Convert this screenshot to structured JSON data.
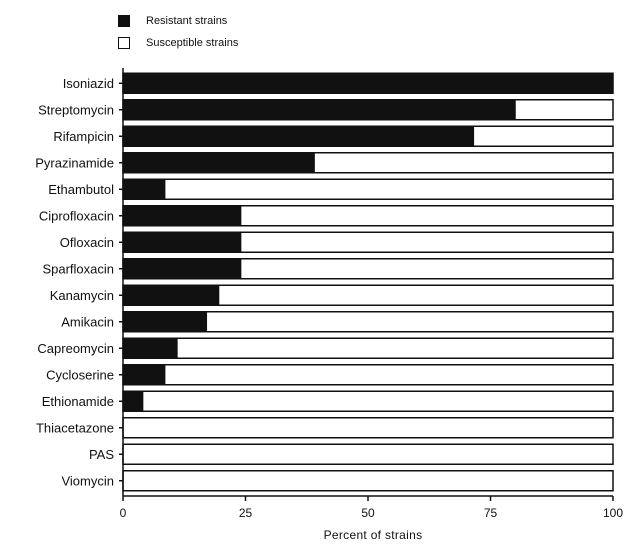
{
  "chart_data": {
    "type": "bar",
    "stacked": true,
    "orientation": "horizontal",
    "categories": [
      "Isoniazid",
      "Streptomycin",
      "Rifampicin",
      "Pyrazinamide",
      "Ethambutol",
      "Ciprofloxacin",
      "Ofloxacin",
      "Sparfloxacin",
      "Kanamycin",
      "Amikacin",
      "Capreomycin",
      "Cycloserine",
      "Ethionamide",
      "Thiacetazone",
      "PAS",
      "Viomycin"
    ],
    "series": [
      {
        "name": "Resistant strains",
        "color": "#111111",
        "values": [
          100,
          80,
          71.5,
          39,
          8.5,
          24,
          24,
          24,
          19.5,
          17,
          11,
          8.5,
          4,
          0,
          0,
          0
        ]
      },
      {
        "name": "Susceptible strains",
        "color": "#ffffff",
        "values": [
          0,
          20,
          28.5,
          61,
          91.5,
          76,
          76,
          76,
          80.5,
          83,
          89,
          91.5,
          96,
          100,
          100,
          100
        ]
      }
    ],
    "xlabel": "Percent of strains",
    "ylabel": "",
    "xlim": [
      0,
      100
    ],
    "xticks": [
      0,
      25,
      50,
      75,
      100
    ],
    "legend_position": "top-left",
    "grid": false
  },
  "legend": {
    "resistant_label": "Resistant strains",
    "susceptible_label": "Susceptible strains"
  }
}
